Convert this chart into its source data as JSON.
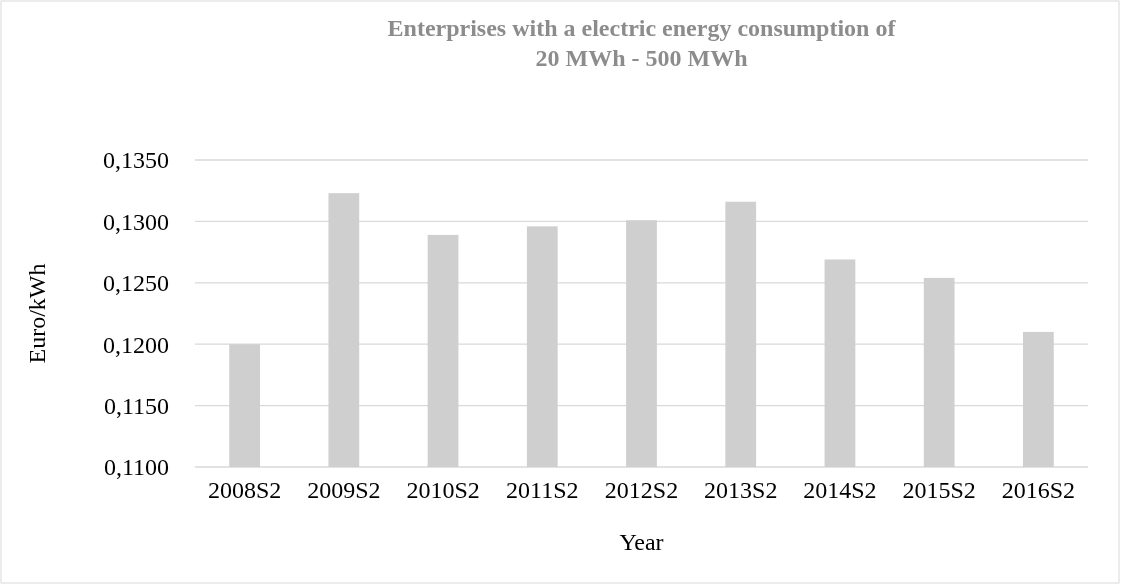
{
  "chart_data": {
    "type": "bar",
    "title": "Enterprises with a electric energy consumption of\n20 MWh - 500 MWh",
    "xlabel": "Year",
    "ylabel": "Euro/kWh",
    "categories": [
      "2008S2",
      "2009S2",
      "2010S2",
      "2011S2",
      "2012S2",
      "2013S2",
      "2014S2",
      "2015S2",
      "2016S2"
    ],
    "values": [
      0.12,
      0.1323,
      0.1289,
      0.1296,
      0.1301,
      0.1316,
      0.1269,
      0.1254,
      0.121
    ],
    "color": "#d0cfd0",
    "ylim": [
      0.11,
      0.135
    ],
    "yticks": [
      {
        "value": 0.11,
        "label": "0,1100"
      },
      {
        "value": 0.115,
        "label": "0,1150"
      },
      {
        "value": 0.12,
        "label": "0,1200"
      },
      {
        "value": 0.125,
        "label": "0,1250"
      },
      {
        "value": 0.13,
        "label": "0,1300"
      },
      {
        "value": 0.135,
        "label": "0,1350"
      }
    ],
    "grid": "y"
  }
}
